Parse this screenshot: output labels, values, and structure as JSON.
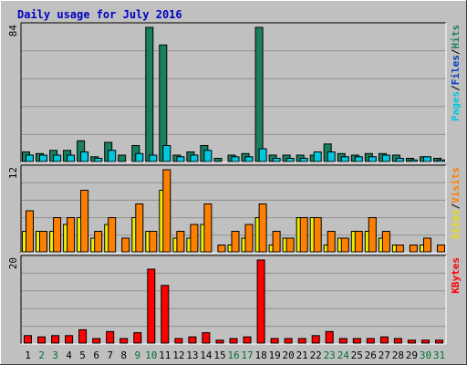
{
  "chart_data": {
    "type": "bar",
    "title": "Daily usage for July 2016",
    "days": [
      "1",
      "2",
      "3",
      "4",
      "5",
      "6",
      "7",
      "8",
      "9",
      "10",
      "11",
      "12",
      "13",
      "14",
      "15",
      "16",
      "17",
      "18",
      "19",
      "20",
      "21",
      "22",
      "23",
      "24",
      "25",
      "26",
      "27",
      "28",
      "29",
      "30",
      "31"
    ],
    "weekend_days": [
      "2",
      "3",
      "9",
      "10",
      "16",
      "17",
      "23",
      "24",
      "30",
      "31"
    ],
    "panels": [
      {
        "id": "hits",
        "ymax": 84,
        "ymax_label": "84",
        "legend": [
          {
            "text": "Pages",
            "color": "#00c8e0"
          },
          {
            "text": "Files",
            "color": "#0040c0"
          },
          {
            "text": "Hits",
            "color": "#208060"
          }
        ],
        "series": [
          {
            "name": "Hits",
            "color": "#188060",
            "values": [
              6,
              5,
              7,
              7,
              13,
              3,
              12,
              4,
              10,
              84,
              73,
              4,
              6,
              10,
              2,
              4,
              5,
              84,
              4,
              4,
              4,
              4,
              11,
              5,
              4,
              5,
              5,
              4,
              2,
              3,
              2
            ]
          },
          {
            "name": "Pages",
            "color": "#00c8e0",
            "values": [
              4,
              4,
              4,
              4,
              6,
              2,
              7,
              0,
              5,
              4,
              10,
              3,
              4,
              7,
              0,
              3,
              3,
              8,
              2,
              2,
              2,
              6,
              6,
              3,
              3,
              3,
              4,
              2,
              1,
              3,
              1
            ]
          }
        ]
      },
      {
        "id": "visits",
        "ymax": 12,
        "ymax_label": "12",
        "legend": [
          {
            "text": "Sites",
            "color": "#e8e000"
          },
          {
            "text": "Visits",
            "color": "#ff8000"
          }
        ],
        "series": [
          {
            "name": "Sites",
            "color": "#f0f000",
            "values": [
              3,
              3,
              3,
              4,
              5,
              2,
              4,
              0,
              5,
              3,
              9,
              2,
              2,
              4,
              0,
              1,
              2,
              5,
              1,
              2,
              5,
              5,
              1,
              2,
              3,
              3,
              2,
              1,
              0,
              1,
              0
            ]
          },
          {
            "name": "Visits",
            "color": "#ff8000",
            "values": [
              6,
              3,
              5,
              5,
              9,
              3,
              5,
              2,
              7,
              3,
              12,
              3,
              4,
              7,
              1,
              3,
              4,
              7,
              3,
              2,
              5,
              5,
              3,
              2,
              3,
              5,
              3,
              1,
              1,
              2,
              1
            ]
          }
        ]
      },
      {
        "id": "kbytes",
        "ymax": 20,
        "ymax_label": "20",
        "legend": [
          {
            "text": "KBytes",
            "color": "#ff0000"
          }
        ],
        "series": [
          {
            "name": "KBytes",
            "color": "#ff0000",
            "values": [
              1.8,
              1.5,
              1.8,
              1.8,
              3.2,
              1.1,
              2.8,
              1.1,
              2.5,
              17.8,
              13.9,
              1.1,
              1.5,
              2.5,
              0.7,
              1.1,
              1.5,
              20,
              1.1,
              1.1,
              1.1,
              1.8,
              2.8,
              1.1,
              1.1,
              1.1,
              1.5,
              1.1,
              0.7,
              0.7,
              0.7
            ]
          }
        ]
      }
    ]
  }
}
